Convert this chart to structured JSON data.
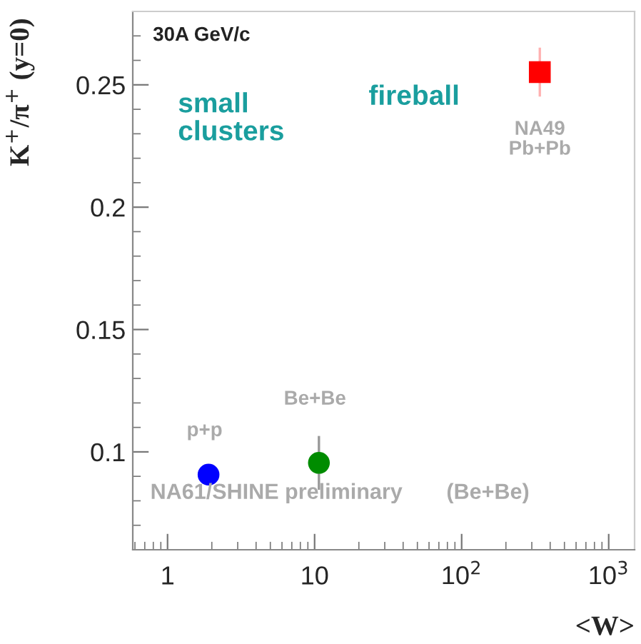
{
  "chart_data": {
    "type": "scatter",
    "xlabel": "<W>",
    "ylabel": "K$^{+}$/π$^{+}$ (y=0)",
    "log": "x",
    "xlim": [
      0.58,
      1500
    ],
    "ylim": [
      0.06,
      0.28
    ],
    "xticks": [
      1,
      10,
      {
        "value": 100,
        "label": "10$^{2}$"
      },
      {
        "value": 1000,
        "label": "10$^{3}$"
      }
    ],
    "yticks": [
      0.1,
      0.15,
      0.2,
      0.25
    ],
    "grid": false,
    "series": [
      {
        "name": "p+p",
        "color": "#0000ff",
        "marker": "circle",
        "x": [
          1.9
        ],
        "values": [
          0.0907
        ],
        "errors": [
          null
        ]
      },
      {
        "name": "Be+Be",
        "color": "#008c00",
        "marker": "circle",
        "x": [
          10.7
        ],
        "values": [
          0.0955
        ],
        "errors": [
          0.011
        ]
      },
      {
        "name": "NA49\nPb+Pb",
        "color": "#ff0000",
        "marker": "square",
        "x": [
          340
        ],
        "values": [
          0.2552
        ],
        "errors": [
          0.01
        ]
      }
    ],
    "annotations": [
      "30A GeV/c",
      "small\nclusters",
      "fireball",
      "NA61/SHINE preliminary",
      "(Be+Be)"
    ]
  }
}
